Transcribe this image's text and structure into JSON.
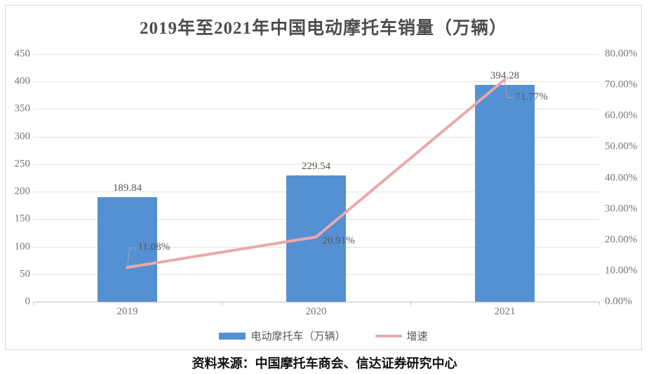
{
  "title": "2019年至2021年中国电动摩托车销量（万辆）",
  "source": "资料来源：中国摩托车商会、信达证券研究中心",
  "legend": [
    {
      "label": "电动摩托车（万辆）"
    },
    {
      "label": "增速"
    }
  ],
  "colors": {
    "bar": "#5590d3",
    "line": "#e9a9a9",
    "leader": "#a6a6a6",
    "gridline": "#e3e3e3",
    "axis": "#bfbfbf",
    "tick_text": "#767676",
    "label_text": "#595959"
  },
  "chart_data": {
    "type": "bar",
    "subtype": "bar+line combo, dual axis",
    "title": "2019年至2021年中国电动摩托车销量（万辆）",
    "categories": [
      "2019",
      "2020",
      "2021"
    ],
    "series": [
      {
        "name": "电动摩托车（万辆）",
        "type": "bar",
        "axis": "left",
        "color": "#5590d3",
        "values": [
          189.84,
          229.54,
          394.28
        ],
        "labels": [
          "189.84",
          "229.54",
          "394.28"
        ]
      },
      {
        "name": "增速",
        "type": "line",
        "axis": "right",
        "color": "#e9a9a9",
        "values": [
          11.08,
          20.91,
          71.77
        ],
        "labels": [
          "11.08%",
          "20.91%",
          "71.77%"
        ]
      }
    ],
    "left_axis": {
      "min": 0,
      "max": 450,
      "step": 50,
      "ticks": [
        "0",
        "50",
        "100",
        "150",
        "200",
        "250",
        "300",
        "350",
        "400",
        "450"
      ]
    },
    "right_axis": {
      "min": 0,
      "max": 80,
      "step": 10,
      "ticks": [
        "0.00%",
        "10.00%",
        "20.00%",
        "30.00%",
        "40.00%",
        "50.00%",
        "60.00%",
        "70.00%",
        "80.00%"
      ]
    },
    "grid": true,
    "legend_position": "bottom"
  }
}
